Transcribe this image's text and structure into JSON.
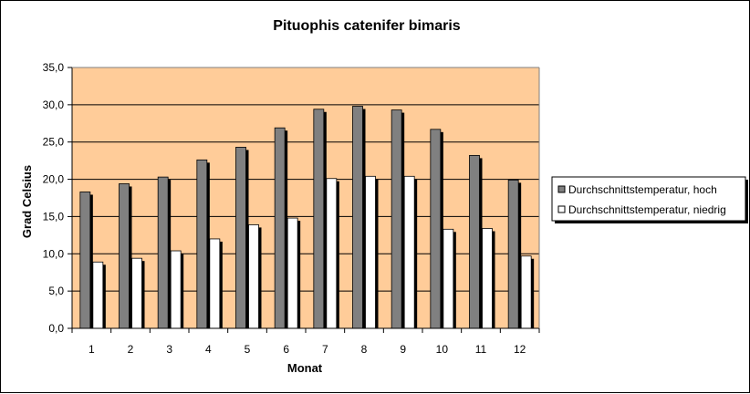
{
  "chart_data": {
    "type": "bar",
    "title": "Pituophis catenifer bimaris",
    "xlabel": "Monat",
    "ylabel": "Grad Celsius",
    "categories": [
      "1",
      "2",
      "3",
      "4",
      "5",
      "6",
      "7",
      "8",
      "9",
      "10",
      "11",
      "12"
    ],
    "ylim": [
      0,
      35
    ],
    "yticks": [
      0,
      5,
      10,
      15,
      20,
      25,
      30,
      35
    ],
    "ytick_labels": [
      "0,0",
      "5,0",
      "10,0",
      "15,0",
      "20,0",
      "25,0",
      "30,0",
      "35,0"
    ],
    "grid": true,
    "legend_position": "right",
    "series": [
      {
        "name": "Durchschnittstemperatur, hoch",
        "color": "#808080",
        "values": [
          18.3,
          19.4,
          20.3,
          22.6,
          24.3,
          26.9,
          29.4,
          29.8,
          29.3,
          26.7,
          23.2,
          19.9
        ]
      },
      {
        "name": "Durchschnittstemperatur, niedrig",
        "color": "#ffffff",
        "values": [
          8.9,
          9.4,
          10.4,
          12.0,
          13.9,
          14.8,
          20.1,
          20.4,
          20.4,
          13.3,
          13.4,
          9.7
        ]
      }
    ],
    "colors": {
      "plot_background": "#FFCC99",
      "bar_shadow": "#000000",
      "grid": "#000000"
    }
  }
}
